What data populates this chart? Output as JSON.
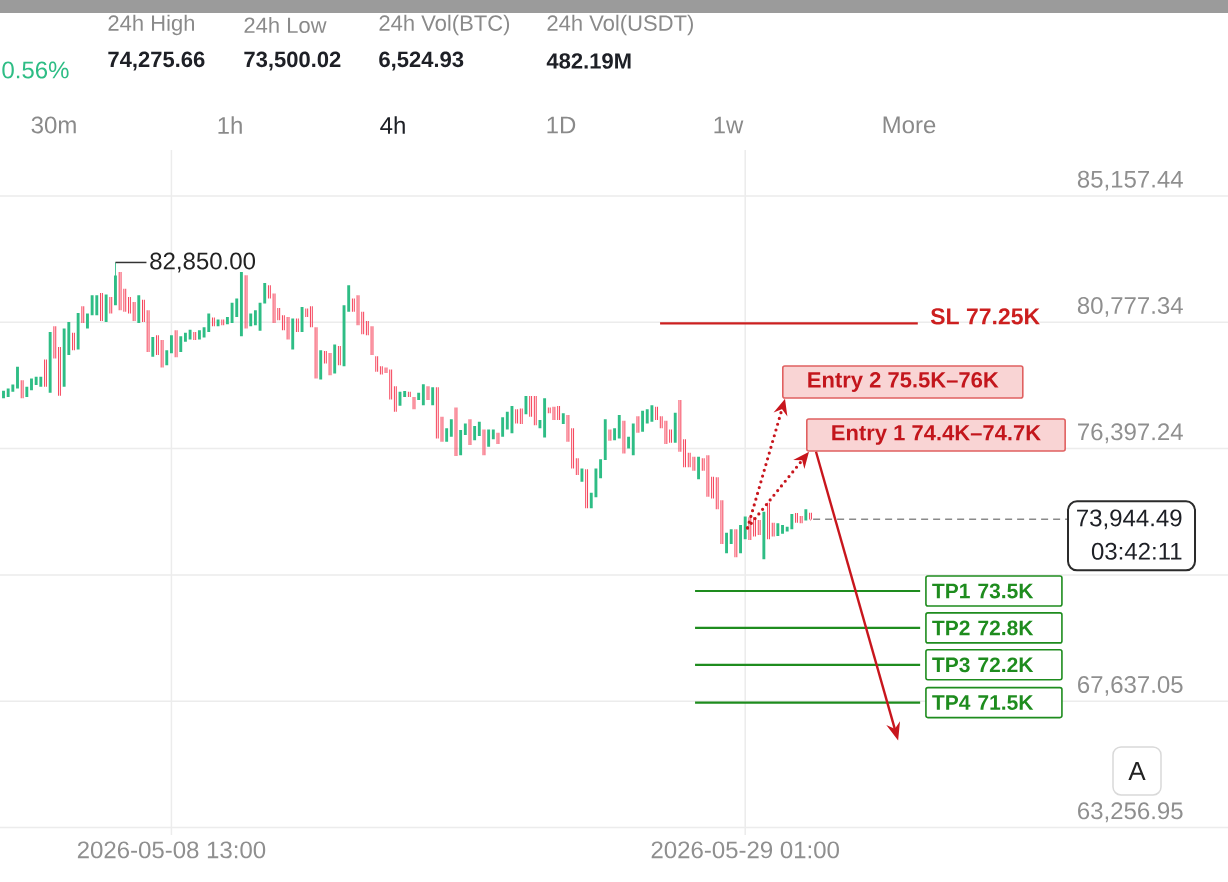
{
  "chart_data": {
    "type": "candlestick",
    "x": [
      "2026-05-02T13:00",
      "2026-05-02T17:00",
      "2026-05-02T21:00",
      "2026-05-03T01:00",
      "2026-05-03T05:00",
      "2026-05-03T09:00",
      "2026-05-03T13:00",
      "2026-05-03T17:00",
      "2026-05-03T21:00",
      "2026-05-04T01:00",
      "2026-05-04T05:00",
      "2026-05-04T09:00",
      "2026-05-04T13:00",
      "2026-05-04T17:00",
      "2026-05-04T21:00",
      "2026-05-05T01:00",
      "2026-05-05T05:00",
      "2026-05-05T09:00",
      "2026-05-05T13:00",
      "2026-05-05T17:00",
      "2026-05-05T21:00",
      "2026-05-06T01:00",
      "2026-05-06T05:00",
      "2026-05-06T09:00",
      "2026-05-06T13:00",
      "2026-05-06T17:00",
      "2026-05-06T21:00",
      "2026-05-07T01:00",
      "2026-05-07T05:00",
      "2026-05-07T09:00",
      "2026-05-07T13:00",
      "2026-05-07T17:00",
      "2026-05-07T21:00",
      "2026-05-08T01:00",
      "2026-05-08T05:00",
      "2026-05-08T09:00",
      "2026-05-08T13:00",
      "2026-05-08T17:00",
      "2026-05-08T21:00",
      "2026-05-09T01:00",
      "2026-05-09T05:00",
      "2026-05-09T09:00",
      "2026-05-09T13:00",
      "2026-05-09T17:00",
      "2026-05-09T21:00",
      "2026-05-10T01:00",
      "2026-05-10T05:00",
      "2026-05-10T09:00",
      "2026-05-10T13:00",
      "2026-05-10T17:00",
      "2026-05-10T21:00",
      "2026-05-11T01:00",
      "2026-05-11T05:00",
      "2026-05-11T09:00",
      "2026-05-11T13:00",
      "2026-05-11T17:00",
      "2026-05-11T21:00",
      "2026-05-12T01:00",
      "2026-05-12T05:00",
      "2026-05-12T09:00",
      "2026-05-12T13:00",
      "2026-05-12T17:00",
      "2026-05-12T21:00",
      "2026-05-13T01:00",
      "2026-05-13T05:00",
      "2026-05-13T09:00",
      "2026-05-13T13:00",
      "2026-05-13T17:00",
      "2026-05-13T21:00",
      "2026-05-14T01:00",
      "2026-05-14T05:00",
      "2026-05-14T09:00",
      "2026-05-14T13:00",
      "2026-05-14T17:00",
      "2026-05-14T21:00",
      "2026-05-15T01:00",
      "2026-05-15T05:00",
      "2026-05-15T09:00",
      "2026-05-15T13:00",
      "2026-05-15T17:00",
      "2026-05-15T21:00",
      "2026-05-16T01:00",
      "2026-05-16T05:00",
      "2026-05-16T09:00",
      "2026-05-16T13:00",
      "2026-05-16T17:00",
      "2026-05-16T21:00",
      "2026-05-17T01:00",
      "2026-05-17T05:00",
      "2026-05-17T09:00",
      "2026-05-17T13:00",
      "2026-05-17T17:00",
      "2026-05-17T21:00",
      "2026-05-18T01:00",
      "2026-05-18T05:00",
      "2026-05-18T09:00",
      "2026-05-18T13:00",
      "2026-05-18T17:00",
      "2026-05-18T21:00",
      "2026-05-19T01:00",
      "2026-05-19T05:00",
      "2026-05-19T09:00",
      "2026-05-19T13:00",
      "2026-05-19T17:00",
      "2026-05-19T21:00",
      "2026-05-20T01:00",
      "2026-05-20T05:00",
      "2026-05-20T09:00",
      "2026-05-20T13:00",
      "2026-05-20T17:00",
      "2026-05-20T21:00",
      "2026-05-21T01:00",
      "2026-05-21T05:00",
      "2026-05-21T09:00",
      "2026-05-21T13:00",
      "2026-05-21T17:00",
      "2026-05-21T21:00",
      "2026-05-22T01:00",
      "2026-05-22T05:00",
      "2026-05-22T09:00",
      "2026-05-22T13:00",
      "2026-05-22T17:00",
      "2026-05-22T21:00",
      "2026-05-23T01:00",
      "2026-05-23T05:00",
      "2026-05-23T09:00",
      "2026-05-23T13:00",
      "2026-05-23T17:00",
      "2026-05-23T21:00",
      "2026-05-24T01:00",
      "2026-05-24T05:00",
      "2026-05-24T09:00",
      "2026-05-24T13:00",
      "2026-05-24T17:00",
      "2026-05-24T21:00",
      "2026-05-25T01:00",
      "2026-05-25T05:00",
      "2026-05-25T09:00",
      "2026-05-25T13:00",
      "2026-05-25T17:00",
      "2026-05-25T21:00",
      "2026-05-26T01:00",
      "2026-05-26T05:00",
      "2026-05-26T09:00",
      "2026-05-26T13:00",
      "2026-05-26T17:00",
      "2026-05-26T21:00",
      "2026-05-27T01:00",
      "2026-05-27T05:00",
      "2026-05-27T09:00",
      "2026-05-27T13:00",
      "2026-05-27T17:00",
      "2026-05-27T21:00",
      "2026-05-28T01:00",
      "2026-05-28T05:00",
      "2026-05-28T09:00",
      "2026-05-28T13:00",
      "2026-05-28T17:00",
      "2026-05-28T21:00",
      "2026-05-29T01:00",
      "2026-05-29T05:00",
      "2026-05-29T09:00",
      "2026-05-29T13:00",
      "2026-05-29T17:00",
      "2026-05-29T21:00",
      "2026-05-30T01:00",
      "2026-05-30T05:00",
      "2026-05-30T09:00",
      "2026-05-30T13:00",
      "2026-05-30T17:00",
      "2026-05-30T21:00",
      "2026-05-31T01:00",
      "2026-05-31T05:00",
      "2026-05-31T09:00"
    ],
    "ohlc": [
      [
        78140,
        78400,
        78140,
        78400
      ],
      [
        78190,
        78480,
        78190,
        78480
      ],
      [
        78370,
        78620,
        78370,
        78620
      ],
      [
        78480,
        79230,
        78480,
        79230
      ],
      [
        78770,
        78770,
        78140,
        78140
      ],
      [
        78190,
        78540,
        78190,
        78540
      ],
      [
        78420,
        78830,
        78420,
        78830
      ],
      [
        78600,
        78890,
        78600,
        78890
      ],
      [
        78540,
        78890,
        78540,
        78890
      ],
      [
        79490,
        79490,
        78540,
        78540
      ],
      [
        78330,
        80440,
        78330,
        80440
      ],
      [
        80640,
        80640,
        79520,
        79520
      ],
      [
        79920,
        79920,
        78230,
        78230
      ],
      [
        78540,
        80560,
        78540,
        80560
      ],
      [
        79640,
        80790,
        79640,
        80790
      ],
      [
        80410,
        80410,
        79810,
        79810
      ],
      [
        79830,
        81100,
        79830,
        81100
      ],
      [
        81330,
        81330,
        80750,
        80750
      ],
      [
        80560,
        81080,
        80560,
        81080
      ],
      [
        81020,
        81710,
        81020,
        81710
      ],
      [
        81020,
        81710,
        81020,
        81710
      ],
      [
        81790,
        81790,
        80820,
        80820
      ],
      [
        80790,
        81740,
        80790,
        81740
      ],
      [
        81650,
        81650,
        81080,
        81080
      ],
      [
        81370,
        82850,
        81370,
        82400
      ],
      [
        82520,
        82520,
        81190,
        81190
      ],
      [
        81940,
        81940,
        81140,
        81140
      ],
      [
        81650,
        81650,
        81080,
        81080
      ],
      [
        81480,
        81480,
        80820,
        80820
      ],
      [
        80750,
        81710,
        80750,
        81710
      ],
      [
        81560,
        81560,
        80790,
        80790
      ],
      [
        81190,
        81190,
        79750,
        79750
      ],
      [
        79580,
        80270,
        79580,
        80270
      ],
      [
        80330,
        80330,
        79640,
        79640
      ],
      [
        80160,
        80160,
        79210,
        79210
      ],
      [
        79290,
        79810,
        79290,
        79810
      ],
      [
        79700,
        80330,
        79700,
        80330
      ],
      [
        80500,
        80500,
        79560,
        79560
      ],
      [
        79750,
        80290,
        79750,
        80290
      ],
      [
        80100,
        80410,
        80100,
        80410
      ],
      [
        80180,
        80520,
        80180,
        80520
      ],
      [
        80440,
        80440,
        80160,
        80160
      ],
      [
        80180,
        80500,
        80180,
        80500
      ],
      [
        80250,
        80600,
        80250,
        80600
      ],
      [
        80440,
        81080,
        80440,
        81080
      ],
      [
        80940,
        80940,
        80640,
        80640
      ],
      [
        80640,
        80870,
        80640,
        80870
      ],
      [
        80870,
        80870,
        80670,
        80670
      ],
      [
        80710,
        80960,
        80710,
        80960
      ],
      [
        80750,
        81450,
        80750,
        81450
      ],
      [
        80960,
        81600,
        80960,
        81600
      ],
      [
        80290,
        82520,
        80290,
        82520
      ],
      [
        82410,
        82410,
        80560,
        80560
      ],
      [
        80640,
        81080,
        80640,
        81080
      ],
      [
        80670,
        81190,
        80670,
        81190
      ],
      [
        80480,
        81450,
        80480,
        81450
      ],
      [
        81430,
        82140,
        81430,
        82140
      ],
      [
        82060,
        82060,
        81600,
        81600
      ],
      [
        81770,
        81770,
        80750,
        80750
      ],
      [
        81270,
        81270,
        80850,
        80850
      ],
      [
        81020,
        81020,
        80500,
        80500
      ],
      [
        80960,
        80960,
        80180,
        80180
      ],
      [
        79830,
        80910,
        79830,
        80910
      ],
      [
        80910,
        80910,
        80440,
        80440
      ],
      [
        80440,
        81310,
        80440,
        81310
      ],
      [
        81250,
        81250,
        80960,
        80960
      ],
      [
        81330,
        81330,
        80600,
        80600
      ],
      [
        80600,
        80600,
        78830,
        78830
      ],
      [
        78790,
        79810,
        78790,
        79810
      ],
      [
        79780,
        79780,
        79350,
        79350
      ],
      [
        79710,
        79710,
        78940,
        78940
      ],
      [
        79000,
        80010,
        79000,
        80010
      ],
      [
        79950,
        79950,
        79290,
        79290
      ],
      [
        79250,
        81370,
        79250,
        81370
      ],
      [
        81140,
        82060,
        81140,
        82060
      ],
      [
        81600,
        81600,
        81140,
        81140
      ],
      [
        81710,
        81710,
        80670,
        80670
      ],
      [
        81140,
        81140,
        80360,
        80360
      ],
      [
        80820,
        80820,
        80330,
        80330
      ],
      [
        80640,
        80640,
        79640,
        79640
      ],
      [
        79600,
        79600,
        79060,
        79060
      ],
      [
        79250,
        79250,
        78970,
        78970
      ],
      [
        79210,
        79210,
        79020,
        79020
      ],
      [
        79140,
        79140,
        78100,
        78100
      ],
      [
        78560,
        78560,
        77670,
        77670
      ],
      [
        77880,
        78370,
        77880,
        78370
      ],
      [
        78190,
        78390,
        78190,
        78390
      ],
      [
        78370,
        78370,
        78190,
        78190
      ],
      [
        78190,
        78190,
        77760,
        77760
      ],
      [
        78080,
        78330,
        78080,
        78330
      ],
      [
        77900,
        78630,
        77900,
        78630
      ],
      [
        78560,
        78560,
        78080,
        78080
      ],
      [
        77900,
        78520,
        77900,
        78520
      ],
      [
        78520,
        78520,
        76750,
        76750
      ],
      [
        77500,
        77500,
        76630,
        76630
      ],
      [
        76630,
        77100,
        76630,
        77100
      ],
      [
        76810,
        77410,
        76810,
        77410
      ],
      [
        77820,
        77820,
        76140,
        76140
      ],
      [
        76170,
        77040,
        76170,
        77040
      ],
      [
        76870,
        77270,
        76870,
        77270
      ],
      [
        77410,
        77410,
        76520,
        76520
      ],
      [
        76690,
        77180,
        76690,
        77180
      ],
      [
        76830,
        77330,
        76830,
        77330
      ],
      [
        77060,
        77060,
        76170,
        76170
      ],
      [
        76460,
        77060,
        76460,
        77060
      ],
      [
        76720,
        77060,
        76720,
        77060
      ],
      [
        76950,
        76950,
        76560,
        76560
      ],
      [
        76810,
        77480,
        76810,
        77480
      ],
      [
        77060,
        77670,
        77060,
        77670
      ],
      [
        76930,
        77870,
        76930,
        77870
      ],
      [
        77760,
        77760,
        77270,
        77270
      ],
      [
        77790,
        77790,
        77250,
        77250
      ],
      [
        77590,
        78220,
        77590,
        78220
      ],
      [
        78220,
        78220,
        77500,
        77500
      ],
      [
        78220,
        78220,
        77210,
        77210
      ],
      [
        77100,
        77390,
        77100,
        77390
      ],
      [
        76780,
        78140,
        76780,
        78140
      ],
      [
        77820,
        77820,
        77620,
        77620
      ],
      [
        77850,
        77850,
        77390,
        77390
      ],
      [
        77870,
        77870,
        77390,
        77390
      ],
      [
        77250,
        77620,
        77250,
        77620
      ],
      [
        77560,
        77560,
        76630,
        76630
      ],
      [
        77100,
        77100,
        75710,
        75710
      ],
      [
        76060,
        76060,
        75480,
        75480
      ],
      [
        75250,
        75710,
        75250,
        75710
      ],
      [
        75680,
        75680,
        74330,
        74330
      ],
      [
        74330,
        74870,
        74330,
        74870
      ],
      [
        74710,
        75710,
        74710,
        75710
      ],
      [
        75370,
        76030,
        75370,
        76030
      ],
      [
        76000,
        77410,
        76000,
        77410
      ],
      [
        77060,
        77060,
        76670,
        76670
      ],
      [
        76690,
        77100,
        76690,
        77100
      ],
      [
        76750,
        77560,
        76750,
        77560
      ],
      [
        77360,
        77360,
        76230,
        76230
      ],
      [
        76400,
        76810,
        76400,
        76810
      ],
      [
        76170,
        77270,
        76170,
        77270
      ],
      [
        77520,
        77520,
        76950,
        76950
      ],
      [
        76980,
        77710,
        76980,
        77710
      ],
      [
        77270,
        77760,
        77270,
        77760
      ],
      [
        77330,
        77900,
        77330,
        77900
      ],
      [
        77850,
        77850,
        77390,
        77390
      ],
      [
        77520,
        77520,
        77100,
        77100
      ],
      [
        77360,
        77360,
        76560,
        76560
      ],
      [
        77060,
        77060,
        76600,
        76600
      ],
      [
        76600,
        77640,
        76600,
        77640
      ],
      [
        78080,
        78080,
        76290,
        76290
      ],
      [
        76720,
        76720,
        75750,
        75750
      ],
      [
        76250,
        76250,
        75750,
        75750
      ],
      [
        76110,
        76110,
        75630,
        75630
      ],
      [
        75330,
        76110,
        75330,
        76110
      ],
      [
        76060,
        76060,
        75630,
        75630
      ],
      [
        76170,
        76170,
        74730,
        74730
      ],
      [
        75420,
        75420,
        74670,
        74670
      ],
      [
        75400,
        75400,
        74290,
        74290
      ],
      [
        74610,
        74610,
        73090,
        73090
      ],
      [
        72770,
        73480,
        72770,
        73480
      ],
      [
        73090,
        73600,
        73090,
        73600
      ],
      [
        73600,
        73600,
        72630,
        72630
      ],
      [
        72770,
        73750,
        72770,
        73750
      ],
      [
        73250,
        74040,
        73250,
        74040
      ],
      [
        74020,
        74020,
        73230,
        73230
      ],
      [
        74020,
        74020,
        73350,
        73350
      ],
      [
        73920,
        73920,
        73400,
        73400
      ],
      [
        72560,
        74210,
        72560,
        74210
      ],
      [
        74520,
        74520,
        73250,
        73250
      ],
      [
        73830,
        73830,
        73350,
        73350
      ],
      [
        73370,
        73810,
        73370,
        73810
      ],
      [
        73440,
        73750,
        73440,
        73750
      ],
      [
        73520,
        73690,
        73520,
        73690
      ],
      [
        73600,
        74130,
        73600,
        74130
      ],
      [
        74160,
        74160,
        73830,
        73830
      ],
      [
        74060,
        74060,
        73810,
        73810
      ],
      [
        73900,
        74290,
        73900,
        74290
      ],
      [
        74170,
        74170,
        73900,
        73940
      ]
    ],
    "colors": [
      "#2ebd85",
      "#2ebd85",
      "#2ebd85",
      "#2ebd85",
      "#f6465d",
      "#2ebd85",
      "#2ebd85",
      "#2ebd85",
      "#2ebd85",
      "#f6465d",
      "#2ebd85",
      "#f6465d",
      "#f6465d",
      "#2ebd85",
      "#2ebd85",
      "#f6465d",
      "#2ebd85",
      "#f6465d",
      "#2ebd85",
      "#2ebd85",
      "#2ebd85",
      "#f6465d",
      "#2ebd85",
      "#f6465d",
      "#2ebd85",
      "#f6465d",
      "#f6465d",
      "#f6465d",
      "#f6465d",
      "#2ebd85",
      "#f6465d",
      "#f6465d",
      "#2ebd85",
      "#f6465d",
      "#f6465d",
      "#2ebd85",
      "#2ebd85",
      "#f6465d",
      "#2ebd85",
      "#2ebd85",
      "#2ebd85",
      "#f6465d",
      "#2ebd85",
      "#2ebd85",
      "#2ebd85",
      "#f6465d",
      "#2ebd85",
      "#f6465d",
      "#2ebd85",
      "#2ebd85",
      "#2ebd85",
      "#2ebd85",
      "#f6465d",
      "#2ebd85",
      "#2ebd85",
      "#2ebd85",
      "#2ebd85",
      "#f6465d",
      "#f6465d",
      "#f6465d",
      "#f6465d",
      "#f6465d",
      "#2ebd85",
      "#f6465d",
      "#2ebd85",
      "#f6465d",
      "#f6465d",
      "#f6465d",
      "#2ebd85",
      "#f6465d",
      "#f6465d",
      "#2ebd85",
      "#f6465d",
      "#2ebd85",
      "#2ebd85",
      "#f6465d",
      "#f6465d",
      "#f6465d",
      "#f6465d",
      "#f6465d",
      "#f6465d",
      "#f6465d",
      "#f6465d",
      "#f6465d",
      "#f6465d",
      "#2ebd85",
      "#2ebd85",
      "#f6465d",
      "#f6465d",
      "#2ebd85",
      "#2ebd85",
      "#f6465d",
      "#2ebd85",
      "#f6465d",
      "#f6465d",
      "#2ebd85",
      "#2ebd85",
      "#f6465d",
      "#2ebd85",
      "#2ebd85",
      "#f6465d",
      "#2ebd85",
      "#2ebd85",
      "#f6465d",
      "#2ebd85",
      "#2ebd85",
      "#f6465d",
      "#2ebd85",
      "#2ebd85",
      "#2ebd85",
      "#f6465d",
      "#f6465d",
      "#2ebd85",
      "#f6465d",
      "#f6465d",
      "#2ebd85",
      "#2ebd85",
      "#f6465d",
      "#f6465d",
      "#f6465d",
      "#2ebd85",
      "#f6465d",
      "#f6465d",
      "#f6465d",
      "#2ebd85",
      "#f6465d",
      "#2ebd85",
      "#2ebd85",
      "#2ebd85",
      "#2ebd85",
      "#f6465d",
      "#2ebd85",
      "#2ebd85",
      "#f6465d",
      "#2ebd85",
      "#2ebd85",
      "#f6465d",
      "#2ebd85",
      "#2ebd85",
      "#2ebd85",
      "#f6465d",
      "#f6465d",
      "#f6465d",
      "#f6465d",
      "#2ebd85",
      "#f6465d",
      "#f6465d",
      "#f6465d",
      "#f6465d",
      "#2ebd85",
      "#f6465d",
      "#f6465d",
      "#f6465d",
      "#f6465d",
      "#f6465d",
      "#2ebd85",
      "#2ebd85",
      "#f6465d",
      "#2ebd85",
      "#2ebd85",
      "#f6465d",
      "#f6465d",
      "#f6465d",
      "#2ebd85",
      "#f6465d",
      "#f6465d",
      "#2ebd85",
      "#2ebd85",
      "#2ebd85",
      "#2ebd85",
      "#f6465d",
      "#f6465d",
      "#2ebd85",
      "#f6465d"
    ],
    "series": [
      {
        "type": "line",
        "name": "SL 77.25K",
        "color": "#cc1f1f",
        "x": [
          "2026-05-26T00:00",
          "2026-06-04T05:00"
        ],
        "values": [
          80740,
          80740
        ]
      },
      {
        "type": "line",
        "name": "TP1 73.5K",
        "color": "#1e8c1e",
        "x": [
          "2026-05-27T06:00",
          "2026-06-04T07:00"
        ],
        "values": [
          71460,
          71460
        ]
      },
      {
        "type": "line",
        "name": "TP2 72.8K",
        "color": "#1e8c1e",
        "x": [
          "2026-05-27T06:00",
          "2026-06-04T07:00"
        ],
        "values": [
          70180,
          70180
        ]
      },
      {
        "type": "line",
        "name": "TP3 72.2K",
        "color": "#1e8c1e",
        "x": [
          "2026-05-27T06:00",
          "2026-06-04T07:00"
        ],
        "values": [
          68900,
          68900
        ]
      },
      {
        "type": "line",
        "name": "TP4 71.5K",
        "color": "#1e8c1e",
        "x": [
          "2026-05-27T06:00",
          "2026-06-04T07:00"
        ],
        "values": [
          67590,
          67590
        ]
      }
    ],
    "xlim": [
      "2026-05-02T10:00",
      "2026-06-15T07:00"
    ],
    "ylim": [
      63000,
      86750
    ],
    "xticks": [
      {
        "value": "2026-05-08T13:00",
        "label": "2026-05-08 13:00"
      },
      {
        "value": "2026-05-29T01:00",
        "label": "2026-05-29 01:00"
      }
    ],
    "yticks": [
      {
        "value": 63256.95,
        "label": "63,256.95"
      },
      {
        "value": 67637.05,
        "label": "67,637.05"
      },
      {
        "value": 72017.14,
        "label": null
      },
      {
        "value": 76397.24,
        "label": "76,397.24"
      },
      {
        "value": 80777.34,
        "label": "80,777.34"
      },
      {
        "value": 85157.44,
        "label": "85,157.44"
      }
    ],
    "grid": true,
    "ref_lines": [
      {
        "axis": "y",
        "value": 73944.49,
        "label": "73,944.49",
        "color": "#8a8a8a",
        "line_style": "dashed"
      }
    ],
    "annotations": [
      "0.56%",
      "24h High",
      "74,275.66",
      "24h Low",
      "73,500.02",
      "24h Vol(BTC)",
      "6,524.93",
      "24h Vol(USDT)",
      "482.19M",
      "30m",
      "1h",
      "4h",
      "1D",
      "1w",
      "More",
      "03:42:11",
      "A",
      {
        "text": "82,850.00",
        "x": "2026-05-06T13:00",
        "y": 82850
      },
      "Entry 2 75.5K–76K",
      "Entry 1 74.4K–74.7K"
    ]
  }
}
